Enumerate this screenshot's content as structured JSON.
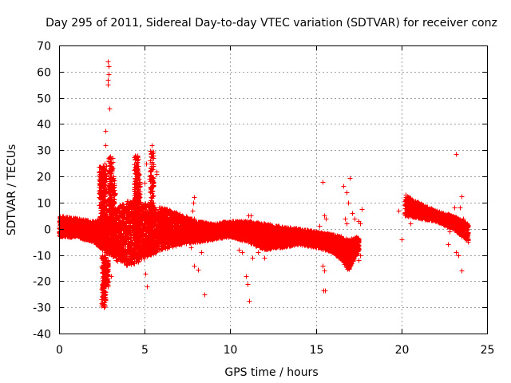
{
  "chart_data": {
    "type": "scatter",
    "title": "Day 295 of 2011, Sidereal Day-to-day VTEC variation (SDTVAR) for receiver conz",
    "xlabel": "GPS time / hours",
    "ylabel": "SDTVAR / TECUs",
    "xlim": [
      0,
      25
    ],
    "ylim": [
      -40,
      70
    ],
    "xticks": [
      0,
      5,
      10,
      15,
      20,
      25
    ],
    "yticks": [
      -40,
      -30,
      -20,
      -10,
      0,
      10,
      20,
      30,
      40,
      50,
      60,
      70
    ],
    "grid": true,
    "marker": "+",
    "color": "#ff0000",
    "band": {
      "x": [
        0,
        1,
        2,
        2.5,
        3,
        3.5,
        4,
        4.5,
        5,
        6,
        7,
        8,
        9,
        10,
        11,
        12,
        13,
        14,
        15,
        16,
        16.5,
        16.9,
        17.5
      ],
      "upper": [
        5,
        4,
        3,
        4,
        6,
        9,
        11,
        11,
        10,
        8,
        6,
        3,
        2,
        3,
        3,
        2,
        1,
        0,
        -1,
        -2,
        -3,
        -4,
        -3
      ],
      "lower": [
        -3,
        -3,
        -5,
        -8,
        -10,
        -13,
        -14,
        -13,
        -11,
        -8,
        -6,
        -5,
        -4,
        -3,
        -5,
        -8,
        -7,
        -6,
        -7,
        -9,
        -12,
        -16,
        -8
      ]
    },
    "band2": {
      "x": [
        20.2,
        21,
        22,
        23,
        23.9
      ],
      "upper": [
        13,
        10,
        7,
        5,
        2
      ],
      "lower": [
        5,
        4,
        3,
        0,
        -5
      ]
    },
    "spikes": [
      {
        "x": 2.45,
        "low": -2,
        "high": 24
      },
      {
        "x": 2.65,
        "low": -8,
        "high": 24
      },
      {
        "x": 2.6,
        "low": -30,
        "high": -10
      },
      {
        "x": 2.75,
        "low": -22,
        "high": -12
      },
      {
        "x": 3.0,
        "low": 2,
        "high": 28
      },
      {
        "x": 3.15,
        "low": -10,
        "high": 20
      },
      {
        "x": 4.5,
        "low": 3,
        "high": 28
      },
      {
        "x": 4.6,
        "low": -10,
        "high": 22
      },
      {
        "x": 5.4,
        "low": -8,
        "high": 30
      }
    ],
    "points": [
      [
        2.85,
        64
      ],
      [
        2.87,
        62
      ],
      [
        2.9,
        59
      ],
      [
        2.84,
        57
      ],
      [
        2.86,
        55
      ],
      [
        2.95,
        46
      ],
      [
        2.7,
        37.5
      ],
      [
        2.72,
        32
      ],
      [
        2.65,
        25
      ],
      [
        5.4,
        32
      ],
      [
        5.5,
        28
      ],
      [
        5.1,
        25
      ],
      [
        5.7,
        22
      ],
      [
        5.7,
        21
      ],
      [
        5.0,
        17.5
      ],
      [
        4.8,
        4
      ],
      [
        5.05,
        -17
      ],
      [
        5.15,
        -22
      ],
      [
        3.05,
        -18
      ],
      [
        2.85,
        -19
      ],
      [
        7.9,
        12
      ],
      [
        7.85,
        10
      ],
      [
        7.8,
        7
      ],
      [
        7.9,
        4
      ],
      [
        8.2,
        -5
      ],
      [
        8.3,
        -9
      ],
      [
        7.7,
        -7
      ],
      [
        7.9,
        -14
      ],
      [
        8.1,
        -15.5
      ],
      [
        8.5,
        -25
      ],
      [
        10.5,
        -8
      ],
      [
        10.7,
        -9
      ],
      [
        10.9,
        -18
      ],
      [
        11.0,
        -21
      ],
      [
        11.1,
        -27.5
      ],
      [
        11.05,
        5
      ],
      [
        11.2,
        5
      ],
      [
        11.3,
        -11
      ],
      [
        11.6,
        -9
      ],
      [
        12.0,
        -11
      ],
      [
        15.4,
        18
      ],
      [
        15.5,
        5
      ],
      [
        15.6,
        4
      ],
      [
        15.2,
        1
      ],
      [
        15.4,
        -14
      ],
      [
        15.5,
        -16
      ],
      [
        15.45,
        -23.5
      ],
      [
        15.55,
        -23.5
      ],
      [
        16.6,
        16.5
      ],
      [
        16.8,
        14
      ],
      [
        17.0,
        19.5
      ],
      [
        16.9,
        10
      ],
      [
        16.7,
        4
      ],
      [
        16.8,
        2
      ],
      [
        17.1,
        6
      ],
      [
        17.25,
        4
      ],
      [
        17.5,
        3
      ],
      [
        17.6,
        2
      ],
      [
        17.7,
        7.5
      ],
      [
        17.6,
        -10
      ],
      [
        17.5,
        -12
      ],
      [
        17.4,
        -7
      ],
      [
        20.0,
        -4
      ],
      [
        19.8,
        7
      ],
      [
        20.5,
        2
      ],
      [
        23.2,
        28.5
      ],
      [
        23.5,
        12.5
      ],
      [
        23.1,
        8
      ],
      [
        23.4,
        8
      ],
      [
        23.6,
        4
      ],
      [
        23.0,
        3
      ],
      [
        22.8,
        -1
      ],
      [
        22.7,
        -6
      ],
      [
        23.2,
        -9
      ],
      [
        23.3,
        -10
      ],
      [
        23.5,
        -16
      ],
      [
        23.9,
        -4
      ],
      [
        23.85,
        1
      ]
    ]
  }
}
